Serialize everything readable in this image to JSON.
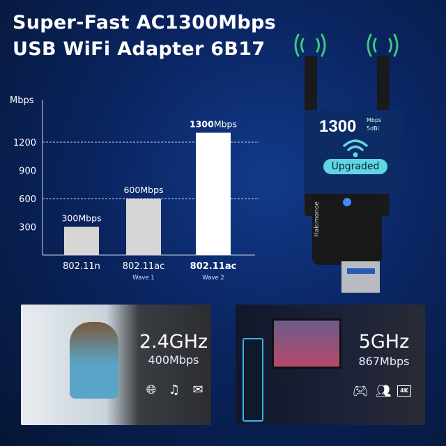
{
  "title": {
    "line1": "Super-Fast AC1300Mbps",
    "line2": "USB WiFi Adapter 6B17"
  },
  "chart_data": {
    "type": "bar",
    "ylabel": "Mbps",
    "ylim": [
      0,
      1500
    ],
    "yticks": [
      "300",
      "600",
      "900",
      "1200"
    ],
    "grid_lines_at": [
      600,
      1200
    ],
    "categories": [
      {
        "label": "802.11n",
        "sub": ""
      },
      {
        "label": "802.11ac",
        "sub": "Wave 1"
      },
      {
        "label": "802.11ac",
        "sub": "Wave 2"
      }
    ],
    "values": [
      300,
      600,
      1300
    ],
    "data_labels": [
      {
        "num": "300",
        "unit": "Mbps"
      },
      {
        "num": "600",
        "unit": "Mbps"
      },
      {
        "num": "1300",
        "unit": "Mbps"
      }
    ],
    "colors": [
      "#d6d6d6",
      "#d6d6d6",
      "#ffffff"
    ]
  },
  "product": {
    "speed": "1300",
    "unit": "Mbps",
    "gain": "5dBi",
    "badge": "Upgraded",
    "brand": "Hakimonoe"
  },
  "band24": {
    "freq": "2.4GHz",
    "speed": "400Mbps",
    "icons": [
      "globe-icon",
      "music-note-icon",
      "mail-icon"
    ]
  },
  "band5": {
    "freq": "5GHz",
    "speed": "867Mbps",
    "icons": [
      "gamepad-icon",
      "users-icon",
      "4k-icon"
    ],
    "badge": "4K"
  },
  "colors": {
    "accent": "#5fd6e0",
    "bg": "#0a2460"
  }
}
